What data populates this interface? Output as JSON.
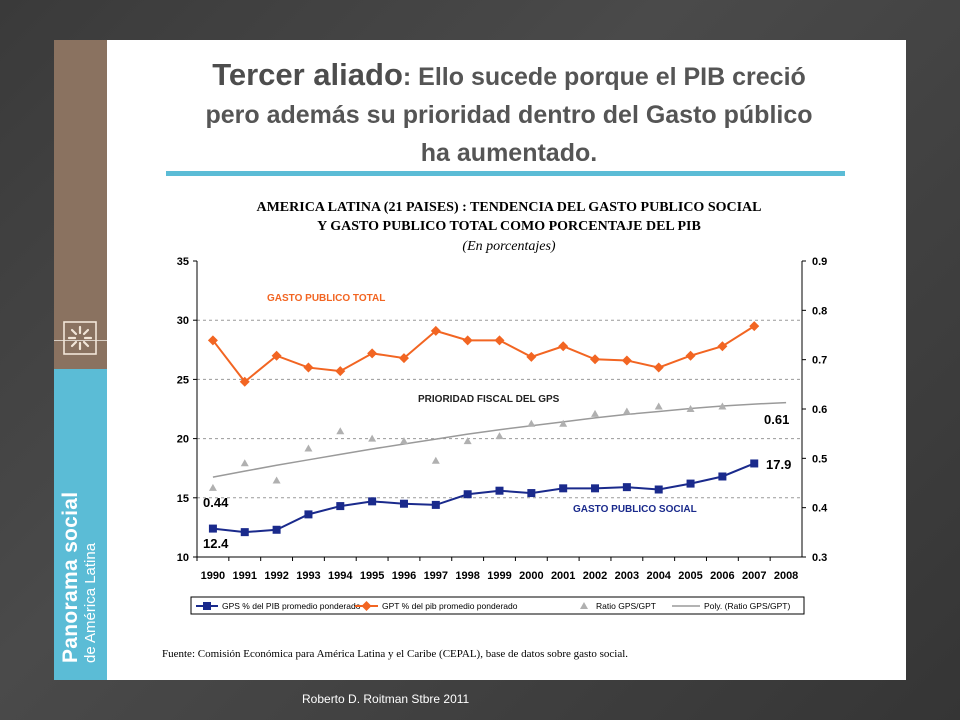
{
  "slide": {
    "title_lead": "Tercer aliado",
    "title_rest": ": Ello sucede porque el PIB creció pero además su prioridad dentro del Gasto público ha aumentado.",
    "sidebar_brand_bold": "Panorama social",
    "sidebar_brand_light": "de América Latina",
    "source": "Fuente: Comisión Económica para América Latina y el Caribe (CEPAL), base de datos sobre gasto social.",
    "footer": "Roberto D. Roitman Stbre 2011",
    "accent_color": "#5bbcd6",
    "sidebar_color": "#8a7260"
  },
  "chart_data": {
    "type": "line",
    "title_line1": "AMERICA LATINA (21 PAISES) : TENDENCIA DEL GASTO PUBLICO SOCIAL",
    "title_line2": "Y GASTO PUBLICO TOTAL COMO PORCENTAJE DEL PIB",
    "subtitle": "(En porcentajes)",
    "categories": [
      "1990",
      "1991",
      "1992",
      "1993",
      "1994",
      "1995",
      "1996",
      "1997",
      "1998",
      "1999",
      "2000",
      "2001",
      "2002",
      "2003",
      "2004",
      "2005",
      "2006",
      "2007",
      "2008"
    ],
    "y_left": {
      "min": 10,
      "max": 35,
      "ticks": [
        "10",
        "15",
        "20",
        "25",
        "30",
        "35"
      ]
    },
    "y_right": {
      "min": 0.3,
      "max": 0.9,
      "ticks": [
        "0.3",
        "0.4",
        "0.5",
        "0.6",
        "0.7",
        "0.8",
        "0.9"
      ]
    },
    "grid": "horizontal dashed",
    "series": [
      {
        "name": "GPS % del PIB promedio ponderado",
        "axis": "left",
        "marker": "square",
        "color": "#1a2a8c",
        "values": [
          12.4,
          12.1,
          12.3,
          13.6,
          14.3,
          14.7,
          14.5,
          14.4,
          15.3,
          15.6,
          15.4,
          15.8,
          15.8,
          15.9,
          15.7,
          16.2,
          16.8,
          17.9,
          null
        ]
      },
      {
        "name": "GPT % del pib promedio ponderado",
        "axis": "left",
        "marker": "diamond",
        "color": "#f26522",
        "values": [
          28.3,
          24.8,
          27.0,
          26.0,
          25.7,
          27.2,
          26.8,
          29.1,
          28.3,
          28.3,
          26.9,
          27.8,
          26.7,
          26.6,
          26.0,
          27.0,
          27.8,
          29.5,
          null
        ]
      },
      {
        "name": "Ratio GPS/GPT",
        "axis": "right",
        "marker": "triangle",
        "color": "#b0b0b0",
        "values": [
          0.44,
          0.49,
          0.455,
          0.52,
          0.555,
          0.54,
          0.535,
          0.495,
          0.535,
          0.545,
          0.57,
          0.57,
          0.59,
          0.595,
          0.605,
          0.6,
          0.605,
          null,
          null
        ]
      },
      {
        "name": "Poly. (Ratio GPS/GPT)",
        "axis": "right",
        "marker": "none",
        "color": "#9a9a9a",
        "values": [
          0.462,
          0.474,
          0.486,
          0.497,
          0.508,
          0.519,
          0.529,
          0.539,
          0.549,
          0.558,
          0.566,
          0.574,
          0.582,
          0.589,
          0.595,
          0.601,
          0.606,
          0.61,
          0.613
        ]
      }
    ],
    "annotations": [
      {
        "text": "GASTO PUBLICO TOTAL",
        "color": "#f26522"
      },
      {
        "text": "PRIORIDAD FISCAL DEL GPS",
        "color": "#222222"
      },
      {
        "text": "GASTO PUBLICO SOCIAL",
        "color": "#1a2a8c"
      }
    ],
    "data_labels": [
      {
        "text": "0.44"
      },
      {
        "text": "12.4"
      },
      {
        "text": "0.61"
      },
      {
        "text": "17.9"
      }
    ],
    "legend_position": "bottom"
  }
}
